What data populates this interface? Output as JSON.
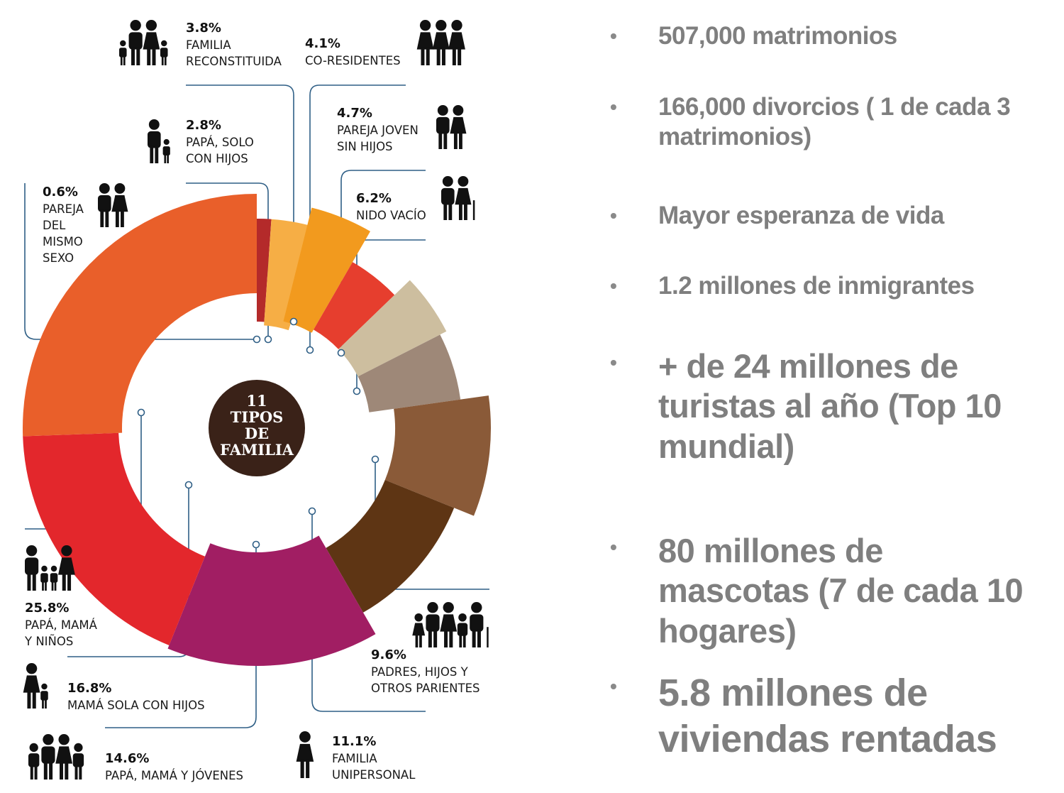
{
  "chart_data": {
    "type": "radial-bar",
    "title": "11 TIPOS DE FAMILIA",
    "center_label": [
      "11",
      "TIPOS",
      "DE",
      "FAMILIA"
    ],
    "unit": "%",
    "segments": [
      {
        "key": "mismo-sexo",
        "value": 0.6,
        "percent_label": "0.6%",
        "label_lines": [
          "PAREJA",
          "DEL",
          "MISMO",
          "SEXO"
        ],
        "color": "#B42A2A",
        "icon": "couple-icon"
      },
      {
        "key": "papa-solo",
        "value": 2.8,
        "percent_label": "2.8%",
        "label_lines": [
          "PAPÁ, SOLO",
          "CON HIJOS"
        ],
        "color": "#F6AE45",
        "icon": "father-child-icon"
      },
      {
        "key": "reconstituida",
        "value": 3.8,
        "percent_label": "3.8%",
        "label_lines": [
          "FAMILIA",
          "RECONSTITUIDA"
        ],
        "color": "#F29A1E",
        "icon": "blended-family-icon"
      },
      {
        "key": "co-residentes",
        "value": 4.1,
        "percent_label": "4.1%",
        "label_lines": [
          "CO-RESIDENTES"
        ],
        "color": "#E63E2E",
        "icon": "three-women-icon"
      },
      {
        "key": "pareja-joven",
        "value": 4.7,
        "percent_label": "4.7%",
        "label_lines": [
          "PAREJA JOVEN",
          "SIN HIJOS"
        ],
        "color": "#CDBE9F",
        "icon": "young-couple-icon"
      },
      {
        "key": "nido-vacio",
        "value": 6.2,
        "percent_label": "6.2%",
        "label_lines": [
          "NIDO VACÍO"
        ],
        "color": "#9E8878",
        "icon": "elderly-couple-icon"
      },
      {
        "key": "padres-hijos-parientes",
        "value": 9.6,
        "percent_label": "9.6%",
        "label_lines": [
          "PADRES, HIJOS Y",
          "OTROS PARIENTES"
        ],
        "color": "#8A5A38",
        "icon": "extended-family-icon"
      },
      {
        "key": "unipersonal",
        "value": 11.1,
        "percent_label": "11.1%",
        "label_lines": [
          "FAMILIA",
          "UNIPERSONAL"
        ],
        "color": "#5E3514",
        "icon": "single-person-icon"
      },
      {
        "key": "papa-mama-jovenes",
        "value": 14.6,
        "percent_label": "14.6%",
        "label_lines": [
          "PAPÁ, MAMÁ Y JÓVENES"
        ],
        "color": "#A11E63",
        "icon": "family-teens-icon"
      },
      {
        "key": "mama-sola",
        "value": 16.8,
        "percent_label": "16.8%",
        "label_lines": [
          "MAMÁ SOLA CON HIJOS"
        ],
        "color": "#E3272C",
        "icon": "mother-child-icon"
      },
      {
        "key": "papa-mama-ninos",
        "value": 25.8,
        "percent_label": "25.8%",
        "label_lines": [
          "PAPÁ, MAMÁ",
          "Y NIÑOS"
        ],
        "color": "#E95F2A",
        "icon": "family-kids-icon"
      }
    ]
  },
  "facts": [
    {
      "text": "507,000 matrimonios"
    },
    {
      "text": "166,000 divorcios ( 1 de cada 3 matrimonios)"
    },
    {
      "text": "Mayor esperanza de vida"
    },
    {
      "text": "1.2 millones de inmigrantes"
    },
    {
      "text": "+ de 24 millones de turistas al año (Top 10 mundial)"
    },
    {
      "text": "80 millones de mascotas (7 de cada 10 hogares)"
    },
    {
      "text": "5.8 millones de viviendas rentadas"
    }
  ],
  "bullet_symbol": "•"
}
